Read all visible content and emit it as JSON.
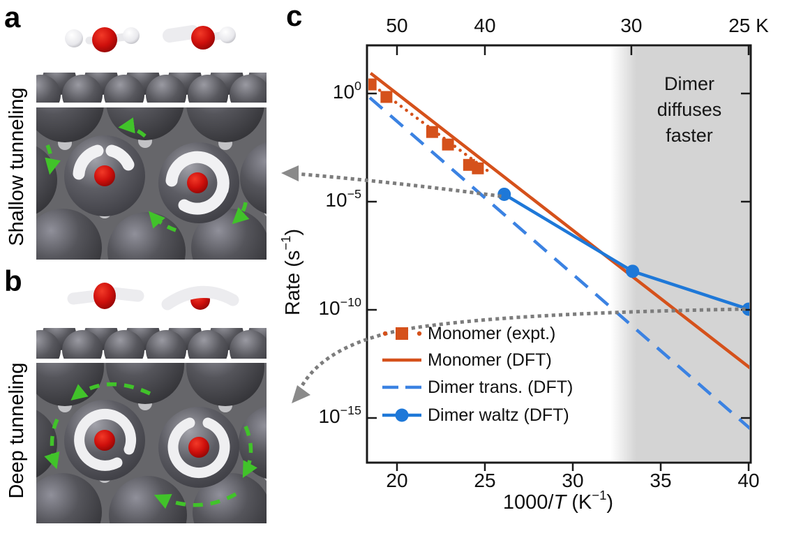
{
  "figure": {
    "panels": {
      "a": {
        "label": "a",
        "side_label": "Shallow tunneling"
      },
      "b": {
        "label": "b",
        "side_label": "Deep tunneling"
      },
      "c": {
        "label": "c"
      }
    },
    "art_colors": {
      "oxygen_red": "#d6150f",
      "hydrogen_white": "#f2f2f4",
      "metal_dark": "#4a4a4e",
      "motion_arrow_green": "#41c32a",
      "connector_gray": "#7d7d7d"
    }
  },
  "chart_data": {
    "type": "line",
    "title": "",
    "xlabel": "1000/T (K⁻¹)",
    "ylabel": "Rate (s⁻¹)",
    "x_axis": {
      "min": 18.3,
      "max": 40.1,
      "ticks": [
        20,
        25,
        30,
        35,
        40
      ]
    },
    "top_axis": {
      "unit": "K",
      "ticks": [
        {
          "label": "50",
          "x": 20
        },
        {
          "label": "40",
          "x": 25
        },
        {
          "label": "30",
          "x": 33.33
        },
        {
          "label": "25 K",
          "x": 40
        }
      ]
    },
    "y_axis": {
      "scale": "log10",
      "tick_exponents": [
        0,
        -5,
        -10,
        -15
      ],
      "min_exponent": -17.1,
      "max_exponent": 2.2,
      "grid": false
    },
    "shaded_region": {
      "x_start": 33.4,
      "x_end": 40.1,
      "label": "Dimer diffuses faster",
      "color": "#d4d4d4"
    },
    "legend_position": "inside-left-lower",
    "series": [
      {
        "name": "Monomer (expt.)",
        "color": "#d5511b",
        "style": "dotted",
        "marker": "square",
        "points_log10": [
          [
            18.5,
            0.42
          ],
          [
            19.4,
            -0.16
          ],
          [
            22.0,
            -1.78
          ],
          [
            22.9,
            -2.36
          ],
          [
            24.1,
            -3.3
          ],
          [
            24.6,
            -3.46
          ]
        ],
        "fit_line_log10": [
          [
            18.4,
            0.52
          ],
          [
            25.4,
            -3.72
          ]
        ]
      },
      {
        "name": "Monomer (DFT)",
        "color": "#d5511b",
        "style": "solid",
        "points_log10": [
          [
            18.5,
            0.94
          ],
          [
            40.1,
            -12.7
          ]
        ]
      },
      {
        "name": "Dimer trans. (DFT)",
        "color": "#3b82e2",
        "style": "dashed",
        "points_log10": [
          [
            18.45,
            -0.19
          ],
          [
            40.1,
            -15.5
          ]
        ]
      },
      {
        "name": "Dimer waltz (DFT)",
        "color": "#1e78d8",
        "style": "solid",
        "marker": "circle",
        "points_log10": [
          [
            26.1,
            -4.66
          ],
          [
            33.4,
            -8.22
          ],
          [
            40.0,
            -9.97
          ]
        ]
      }
    ],
    "axis_label_parts": {
      "y_pre": "Rate (s",
      "y_sup": "−1",
      "y_post": ")",
      "x_pre": "1000/",
      "x_var": "T",
      "x_mid": " (K",
      "x_sup": "−1",
      "x_post": ")"
    }
  }
}
